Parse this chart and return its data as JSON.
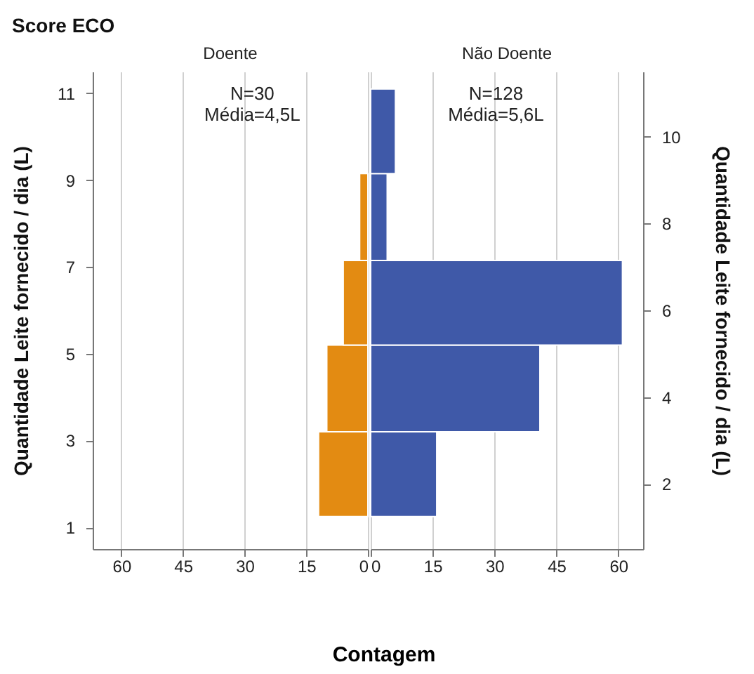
{
  "chart_data": [
    {
      "type": "histogram",
      "title": "Score ECO",
      "subtitle": "Doente",
      "xlabel": "Contagem",
      "ylabel": "Quantidade Leite fornecido / dia (L)",
      "orientation": "horizontal",
      "bins": [
        1.25,
        3.2,
        5.2,
        7.15,
        9.15
      ],
      "values": [
        12,
        10,
        6,
        2
      ],
      "color": "#e38b12",
      "xlim": [
        67,
        0
      ],
      "xticks": [
        60,
        45,
        30,
        15,
        0
      ],
      "ylim": [
        0.5,
        11.5
      ],
      "yticks": [
        1,
        3,
        5,
        7,
        9,
        11
      ],
      "grid": "x",
      "annotations": [
        "N=30\nMédia=4,5L"
      ]
    },
    {
      "type": "histogram",
      "subtitle": "Não Doente",
      "ylabel": "Quantidade Leite fornecido / dia (L)",
      "orientation": "horizontal",
      "bins": [
        1.25,
        3.2,
        5.2,
        7.15,
        9.15,
        11.1
      ],
      "values": [
        16,
        41,
        61,
        4,
        6
      ],
      "color": "#3f59a8",
      "xlim": [
        0,
        66
      ],
      "xticks": [
        0,
        15,
        30,
        45,
        60
      ],
      "ylim": [
        0.5,
        11.5
      ],
      "yticks": [
        2,
        4,
        6,
        8,
        10
      ],
      "grid": "x",
      "annotations": [
        "N=128\nMédia=5,6L"
      ]
    }
  ]
}
